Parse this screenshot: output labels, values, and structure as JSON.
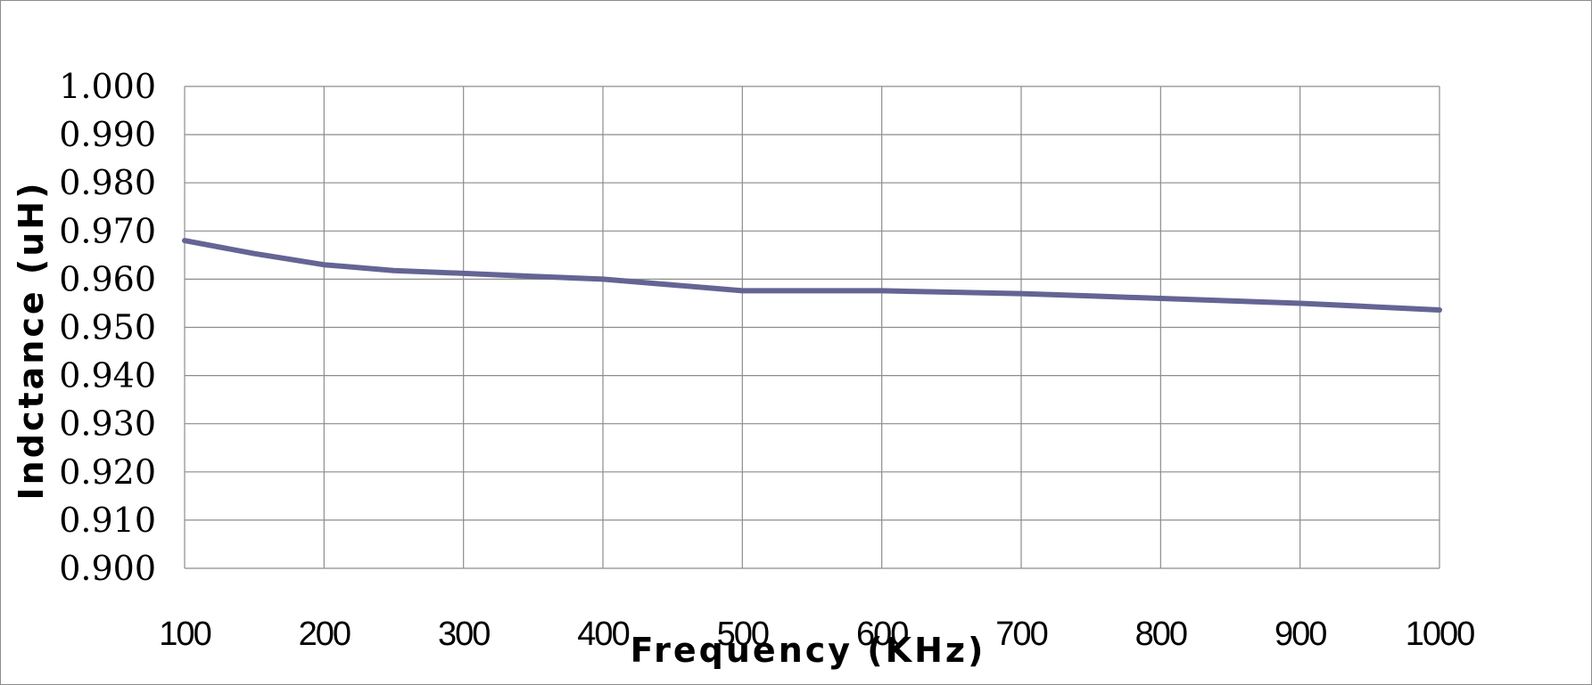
{
  "chart_data": {
    "type": "line",
    "title": "",
    "xlabel": "Frequency (KHz)",
    "ylabel": "Indctance (uH)",
    "x": [
      100,
      150,
      200,
      250,
      300,
      350,
      400,
      450,
      500,
      550,
      600,
      650,
      700,
      750,
      800,
      850,
      900,
      950,
      1000
    ],
    "series": [
      {
        "values": [
          0.968,
          0.9653,
          0.963,
          0.9618,
          0.9612,
          0.9606,
          0.96,
          0.9588,
          0.9576,
          0.9576,
          0.9576,
          0.9573,
          0.957,
          0.9565,
          0.956,
          0.9555,
          0.955,
          0.9543,
          0.9536
        ],
        "color": "#646495"
      }
    ],
    "xlim": [
      100,
      1000
    ],
    "ylim": [
      0.9,
      1.0
    ],
    "x_ticks": [
      "100",
      "200",
      "300",
      "400",
      "500",
      "600",
      "700",
      "800",
      "900",
      "1000"
    ],
    "y_ticks": [
      "0.900",
      "0.910",
      "0.920",
      "0.930",
      "0.940",
      "0.950",
      "0.960",
      "0.970",
      "0.980",
      "0.990",
      "1.000"
    ],
    "grid": true,
    "legend": "none",
    "grid_color": "#8c8c8c"
  }
}
